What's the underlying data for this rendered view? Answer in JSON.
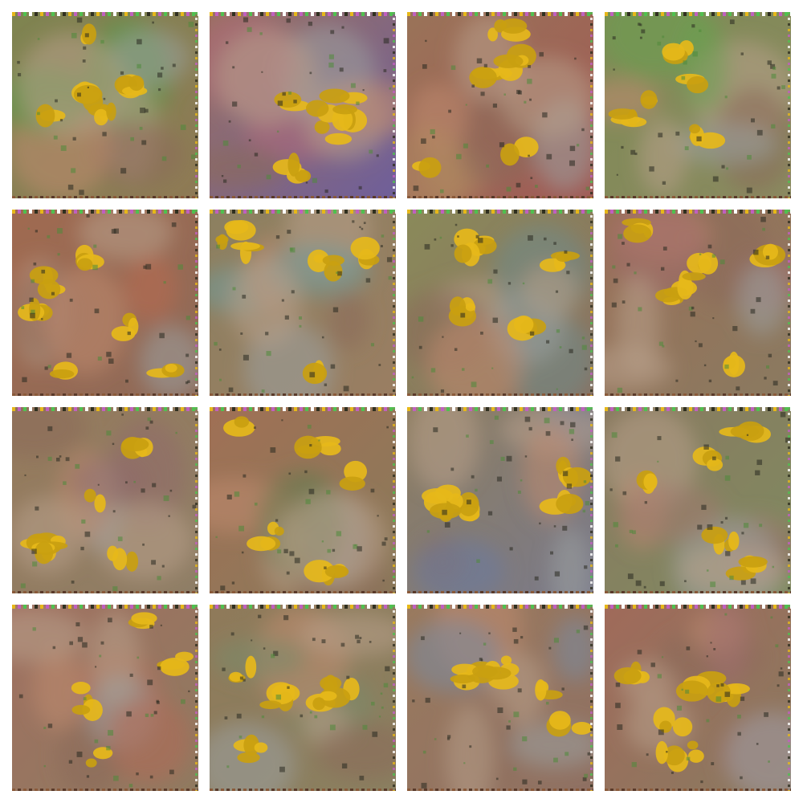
{
  "grid": {
    "rows": 4,
    "columns": 4,
    "background": "#ffffff"
  },
  "tiles": [
    {
      "base": [
        "#7e8450",
        "#8f7a55"
      ],
      "tint": "#4f9a45",
      "blobs": 5
    },
    {
      "base": [
        "#9a7060",
        "#6f5f9a"
      ],
      "tint": "#b16a7a",
      "blobs": 6
    },
    {
      "base": [
        "#9a7358",
        "#a05a55"
      ],
      "tint": "#b08a60",
      "blobs": 5
    },
    {
      "base": [
        "#7f8a55",
        "#8a8a60"
      ],
      "tint": "#6aa050",
      "blobs": 5
    },
    {
      "base": [
        "#a06a50",
        "#8e6a58"
      ],
      "tint": "#b86a50",
      "blobs": 6
    },
    {
      "base": [
        "#8c8060",
        "#9a7e62"
      ],
      "tint": "#6f9a9a",
      "blobs": 5
    },
    {
      "base": [
        "#8a8a5a",
        "#8a7060"
      ],
      "tint": "#6f8a8a",
      "blobs": 5
    },
    {
      "base": [
        "#9a7058",
        "#8a7a60"
      ],
      "tint": "#a06a6a",
      "blobs": 6
    },
    {
      "base": [
        "#957a5c",
        "#8f7e66"
      ],
      "tint": "#8f6a6a",
      "blobs": 5
    },
    {
      "base": [
        "#a07055",
        "#8a7a5a"
      ],
      "tint": "#6a7a50",
      "blobs": 6
    },
    {
      "base": [
        "#8d7d60",
        "#7a7a8a"
      ],
      "tint": "#6a7aa0",
      "blobs": 5
    },
    {
      "base": [
        "#8a7a60",
        "#7f8a60"
      ],
      "tint": "#a07a70",
      "blobs": 5
    },
    {
      "base": [
        "#a07060",
        "#8f7a60"
      ],
      "tint": "#b06a55",
      "blobs": 5
    },
    {
      "base": [
        "#8f7a5a",
        "#8a8060"
      ],
      "tint": "#7a8a6a",
      "blobs": 5
    },
    {
      "base": [
        "#9a7a5e",
        "#8f7062"
      ],
      "tint": "#7a8aa0",
      "blobs": 5
    },
    {
      "base": [
        "#a06a5a",
        "#8a7a60"
      ],
      "tint": "#a07070",
      "blobs": 6
    }
  ],
  "palette": {
    "yellow": "#e6b81a",
    "yellow_dark": "#c9a010",
    "dark_speck": "#2a2a20",
    "green_speck": "#4f8a3a",
    "border_dots": [
      "#e6b81a",
      "#c060c0",
      "#50c050",
      "#ffffff",
      "#303020"
    ]
  }
}
